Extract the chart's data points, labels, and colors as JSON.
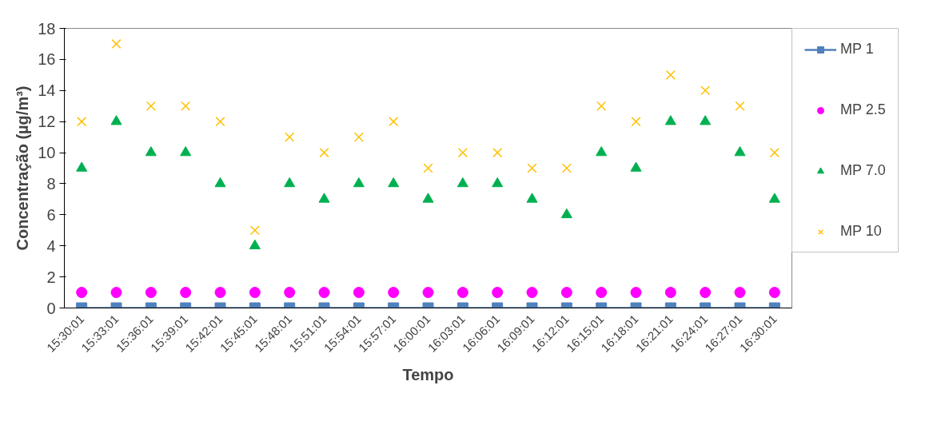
{
  "chart_data": {
    "type": "scatter",
    "xlabel": "Tempo",
    "ylabel": "Concentração (µg/m³)",
    "categories": [
      "15:30:01",
      "15:33:01",
      "15:36:01",
      "15:39:01",
      "15:42:01",
      "15:45:01",
      "15:48:01",
      "15:51:01",
      "15:54:01",
      "15:57:01",
      "16:00:01",
      "16:03:01",
      "16:06:01",
      "16:09:01",
      "16:12:01",
      "16:15:01",
      "16:18:01",
      "16:21:01",
      "16:24:01",
      "16:27:01",
      "16:30:01"
    ],
    "ylim": [
      0,
      18
    ],
    "yticks": [
      0,
      2,
      4,
      6,
      8,
      10,
      12,
      14,
      16,
      18
    ],
    "grid": false,
    "legend": "right",
    "series": [
      {
        "name": "MP 1",
        "type": "line",
        "marker": "square",
        "color": "#4f81bd",
        "values": [
          0,
          0,
          0,
          0,
          0,
          0,
          0,
          0,
          0,
          0,
          0,
          0,
          0,
          0,
          0,
          0,
          0,
          0,
          0,
          0,
          0
        ]
      },
      {
        "name": "MP 2.5",
        "marker": "circle",
        "color": "#ff00ff",
        "values": [
          1,
          1,
          1,
          1,
          1,
          1,
          1,
          1,
          1,
          1,
          1,
          1,
          1,
          1,
          1,
          1,
          1,
          1,
          1,
          1,
          1
        ]
      },
      {
        "name": "MP 7.0",
        "marker": "triangle",
        "color": "#00b050",
        "values": [
          9,
          12,
          10,
          10,
          8,
          4,
          8,
          7,
          8,
          8,
          7,
          8,
          8,
          7,
          6,
          10,
          9,
          12,
          12,
          10,
          7
        ]
      },
      {
        "name": "MP 10",
        "marker": "cross",
        "color": "#ffc000",
        "values": [
          12,
          17,
          13,
          13,
          12,
          5,
          11,
          10,
          11,
          12,
          9,
          10,
          10,
          9,
          9,
          13,
          12,
          15,
          14,
          13,
          10
        ]
      }
    ]
  }
}
